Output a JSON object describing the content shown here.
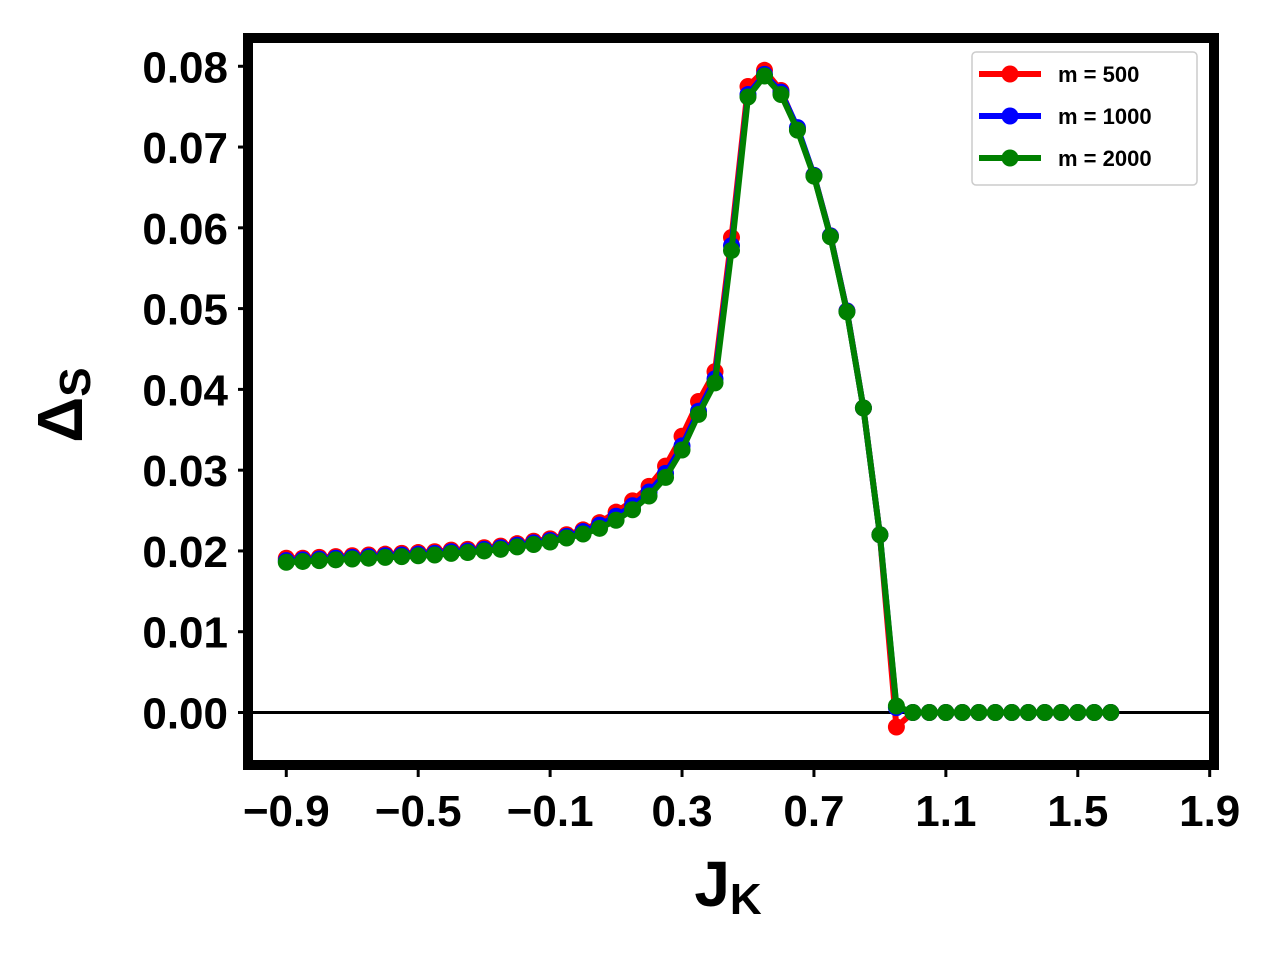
{
  "chart_data": {
    "type": "line",
    "xlabel_main": "J",
    "xlabel_sub": "K",
    "ylabel_main": "Δ",
    "ylabel_sub": "S",
    "xlim": [
      -1.01,
      1.91
    ],
    "ylim": [
      -0.0065,
      0.0835
    ],
    "xticks": [
      -0.9,
      -0.5,
      -0.1,
      0.3,
      0.7,
      1.1,
      1.5,
      1.9
    ],
    "xtick_labels": [
      "−0.9",
      "−0.5",
      "−0.1",
      "0.3",
      "0.7",
      "1.1",
      "1.5",
      "1.9"
    ],
    "yticks": [
      0.0,
      0.01,
      0.02,
      0.03,
      0.04,
      0.05,
      0.06,
      0.07,
      0.08
    ],
    "ytick_labels": [
      "0.00",
      "0.01",
      "0.02",
      "0.03",
      "0.04",
      "0.05",
      "0.06",
      "0.07",
      "0.08"
    ],
    "hline_y": 0,
    "grid": false,
    "legend_position": "top-right",
    "legend_title": "",
    "x": [
      -0.9,
      -0.85,
      -0.8,
      -0.75,
      -0.7,
      -0.65,
      -0.6,
      -0.55,
      -0.5,
      -0.45,
      -0.4,
      -0.35,
      -0.3,
      -0.25,
      -0.2,
      -0.15,
      -0.1,
      -0.05,
      0.0,
      0.05,
      0.1,
      0.15,
      0.2,
      0.25,
      0.3,
      0.35,
      0.4,
      0.45,
      0.5,
      0.55,
      0.6,
      0.65,
      0.7,
      0.75,
      0.8,
      0.85,
      0.9,
      0.95,
      1.0,
      1.05,
      1.1,
      1.15,
      1.2,
      1.25,
      1.3,
      1.35,
      1.4,
      1.45,
      1.5,
      1.55,
      1.6
    ],
    "series": [
      {
        "name": "m = 500",
        "color": "#ff0000",
        "values": [
          0.0191,
          0.0191,
          0.0192,
          0.0193,
          0.0194,
          0.0195,
          0.0196,
          0.0197,
          0.0198,
          0.0199,
          0.0201,
          0.0202,
          0.0204,
          0.0206,
          0.0209,
          0.0212,
          0.0215,
          0.022,
          0.0226,
          0.0235,
          0.0248,
          0.0262,
          0.028,
          0.0305,
          0.0342,
          0.0385,
          0.0422,
          0.0588,
          0.0775,
          0.0795,
          0.077,
          0.0722,
          0.0665,
          0.059,
          0.0497,
          0.0377,
          0.022,
          -0.0018,
          0.0,
          0.0,
          0.0,
          0.0,
          0.0,
          0.0,
          0.0,
          0.0,
          0.0,
          0.0,
          0.0,
          0.0,
          0.0
        ]
      },
      {
        "name": "m = 1000",
        "color": "#0000ff",
        "values": [
          0.0188,
          0.0189,
          0.019,
          0.0191,
          0.0192,
          0.0193,
          0.0194,
          0.0195,
          0.0196,
          0.0197,
          0.0199,
          0.02,
          0.0202,
          0.0204,
          0.0207,
          0.021,
          0.0213,
          0.0218,
          0.0224,
          0.0232,
          0.0243,
          0.0256,
          0.0273,
          0.0296,
          0.033,
          0.0373,
          0.0413,
          0.0578,
          0.0765,
          0.079,
          0.0768,
          0.0724,
          0.0665,
          0.059,
          0.0497,
          0.0377,
          0.022,
          0.0006,
          0.0,
          0.0,
          0.0,
          0.0,
          0.0,
          0.0,
          0.0,
          0.0,
          0.0,
          0.0,
          0.0,
          0.0,
          0.0
        ]
      },
      {
        "name": "m = 2000",
        "color": "#008000",
        "values": [
          0.0186,
          0.0187,
          0.0188,
          0.0189,
          0.019,
          0.0191,
          0.0192,
          0.0193,
          0.0194,
          0.0195,
          0.0197,
          0.0198,
          0.02,
          0.0202,
          0.0205,
          0.0208,
          0.0211,
          0.0216,
          0.0221,
          0.0228,
          0.0238,
          0.0251,
          0.0268,
          0.0291,
          0.0325,
          0.0369,
          0.0408,
          0.0572,
          0.0762,
          0.0788,
          0.0765,
          0.0721,
          0.0664,
          0.0589,
          0.0496,
          0.0377,
          0.022,
          0.0008,
          0.0,
          0.0,
          0.0,
          0.0,
          0.0,
          0.0,
          0.0,
          0.0,
          0.0,
          0.0,
          0.0,
          0.0,
          0.0
        ]
      }
    ]
  }
}
